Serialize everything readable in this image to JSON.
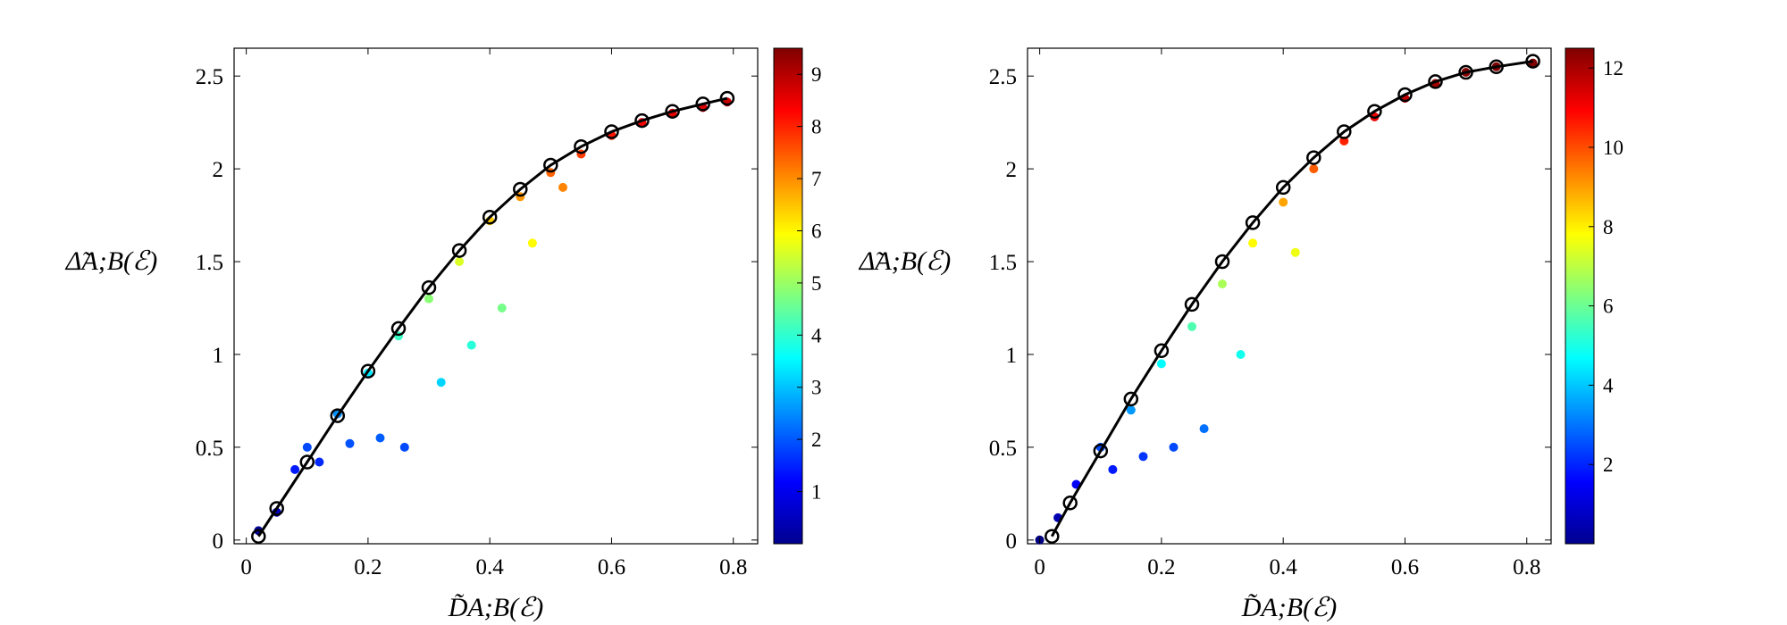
{
  "chart_data": [
    {
      "type": "scatter",
      "xlabel": "D̃A;B(ℰ)",
      "ylabel": "Δ̃A;B(ℰ)",
      "xlim": [
        -0.02,
        0.84
      ],
      "ylim": [
        -0.02,
        2.65
      ],
      "xticks": [
        0,
        0.2,
        0.4,
        0.6,
        0.8
      ],
      "xtick_labels": [
        "0",
        "0.2",
        "0.4",
        "0.6",
        "0.8"
      ],
      "yticks": [
        0,
        0.5,
        1,
        1.5,
        2,
        2.5
      ],
      "ytick_labels": [
        "0",
        "0.5",
        "1",
        "1.5",
        "2",
        "2.5"
      ],
      "colormap": "jet",
      "colorbar": {
        "min": 0,
        "max": 9.5,
        "ticks": [
          1,
          2,
          3,
          4,
          5,
          6,
          7,
          8,
          9
        ],
        "tick_labels": [
          "1",
          "2",
          "3",
          "4",
          "5",
          "6",
          "7",
          "8",
          "9"
        ]
      },
      "scatter_points_approx": [
        [
          0.02,
          0.05
        ],
        [
          0.05,
          0.15
        ],
        [
          0.08,
          0.38
        ],
        [
          0.1,
          0.5
        ],
        [
          0.12,
          0.42
        ],
        [
          0.15,
          0.68
        ],
        [
          0.17,
          0.52
        ],
        [
          0.2,
          0.9
        ],
        [
          0.22,
          0.55
        ],
        [
          0.25,
          1.1
        ],
        [
          0.26,
          0.5
        ],
        [
          0.3,
          1.3
        ],
        [
          0.32,
          0.85
        ],
        [
          0.35,
          1.5
        ],
        [
          0.37,
          1.05
        ],
        [
          0.4,
          1.72
        ],
        [
          0.42,
          1.25
        ],
        [
          0.45,
          1.85
        ],
        [
          0.47,
          1.6
        ],
        [
          0.5,
          1.98
        ],
        [
          0.52,
          1.9
        ],
        [
          0.55,
          2.08
        ],
        [
          0.6,
          2.18
        ],
        [
          0.65,
          2.25
        ],
        [
          0.7,
          2.3
        ],
        [
          0.75,
          2.33
        ],
        [
          0.79,
          2.36
        ]
      ],
      "fit_curve": {
        "x": [
          0.02,
          0.05,
          0.1,
          0.15,
          0.2,
          0.25,
          0.3,
          0.35,
          0.4,
          0.45,
          0.5,
          0.55,
          0.6,
          0.65,
          0.7,
          0.75,
          0.79
        ],
        "y": [
          0.02,
          0.17,
          0.42,
          0.67,
          0.91,
          1.14,
          1.36,
          1.56,
          1.74,
          1.89,
          2.02,
          2.12,
          2.2,
          2.26,
          2.31,
          2.35,
          2.38
        ]
      }
    },
    {
      "type": "scatter",
      "xlabel": "D̃A;B(ℰ)",
      "ylabel": "Δ̃A;B(ℰ)",
      "xlim": [
        -0.02,
        0.84
      ],
      "ylim": [
        -0.02,
        2.65
      ],
      "xticks": [
        0,
        0.2,
        0.4,
        0.6,
        0.8
      ],
      "xtick_labels": [
        "0",
        "0.2",
        "0.4",
        "0.6",
        "0.8"
      ],
      "yticks": [
        0,
        0.5,
        1,
        1.5,
        2,
        2.5
      ],
      "ytick_labels": [
        "0",
        "0.5",
        "1",
        "1.5",
        "2",
        "2.5"
      ],
      "colormap": "jet",
      "colorbar": {
        "min": 0,
        "max": 12.5,
        "ticks": [
          2,
          4,
          6,
          8,
          10,
          12
        ],
        "tick_labels": [
          "2",
          "4",
          "6",
          "8",
          "10",
          "12"
        ]
      },
      "scatter_points_approx": [
        [
          0.0,
          0.0
        ],
        [
          0.03,
          0.12
        ],
        [
          0.06,
          0.3
        ],
        [
          0.1,
          0.5
        ],
        [
          0.12,
          0.38
        ],
        [
          0.15,
          0.7
        ],
        [
          0.17,
          0.45
        ],
        [
          0.2,
          0.95
        ],
        [
          0.22,
          0.5
        ],
        [
          0.25,
          1.15
        ],
        [
          0.27,
          0.6
        ],
        [
          0.3,
          1.38
        ],
        [
          0.33,
          1.0
        ],
        [
          0.35,
          1.6
        ],
        [
          0.4,
          1.82
        ],
        [
          0.42,
          1.55
        ],
        [
          0.45,
          2.0
        ],
        [
          0.5,
          2.15
        ],
        [
          0.55,
          2.28
        ],
        [
          0.6,
          2.38
        ],
        [
          0.65,
          2.46
        ],
        [
          0.7,
          2.52
        ],
        [
          0.75,
          2.55
        ],
        [
          0.81,
          2.57
        ]
      ],
      "fit_curve": {
        "x": [
          0.02,
          0.05,
          0.1,
          0.15,
          0.2,
          0.25,
          0.3,
          0.35,
          0.4,
          0.45,
          0.5,
          0.55,
          0.6,
          0.65,
          0.7,
          0.75,
          0.81
        ],
        "y": [
          0.02,
          0.2,
          0.48,
          0.76,
          1.02,
          1.27,
          1.5,
          1.71,
          1.9,
          2.06,
          2.2,
          2.31,
          2.4,
          2.47,
          2.52,
          2.55,
          2.58
        ]
      }
    }
  ]
}
